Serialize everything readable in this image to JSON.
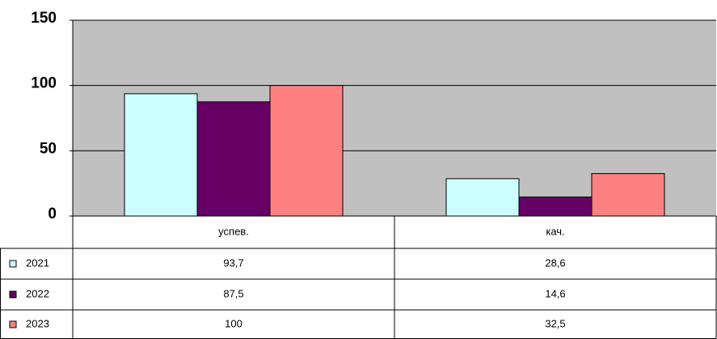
{
  "chart_data": {
    "type": "bar",
    "categories": [
      "успев.",
      "кач."
    ],
    "series": [
      {
        "name": "2021",
        "color": "#ccffff",
        "values": [
          93.7,
          28.6
        ],
        "value_labels": [
          "93,7",
          "28,6"
        ]
      },
      {
        "name": "2022",
        "color": "#660066",
        "values": [
          87.5,
          14.6
        ],
        "value_labels": [
          "87,5",
          "14,6"
        ]
      },
      {
        "name": "2023",
        "color": "#ff8080",
        "values": [
          100,
          32.5
        ],
        "value_labels": [
          "100",
          "32,5"
        ]
      }
    ],
    "ylim": [
      0,
      150
    ],
    "yticks": [
      0,
      50,
      100,
      150
    ],
    "grid": true,
    "plot_background": "#c0c0c0"
  }
}
